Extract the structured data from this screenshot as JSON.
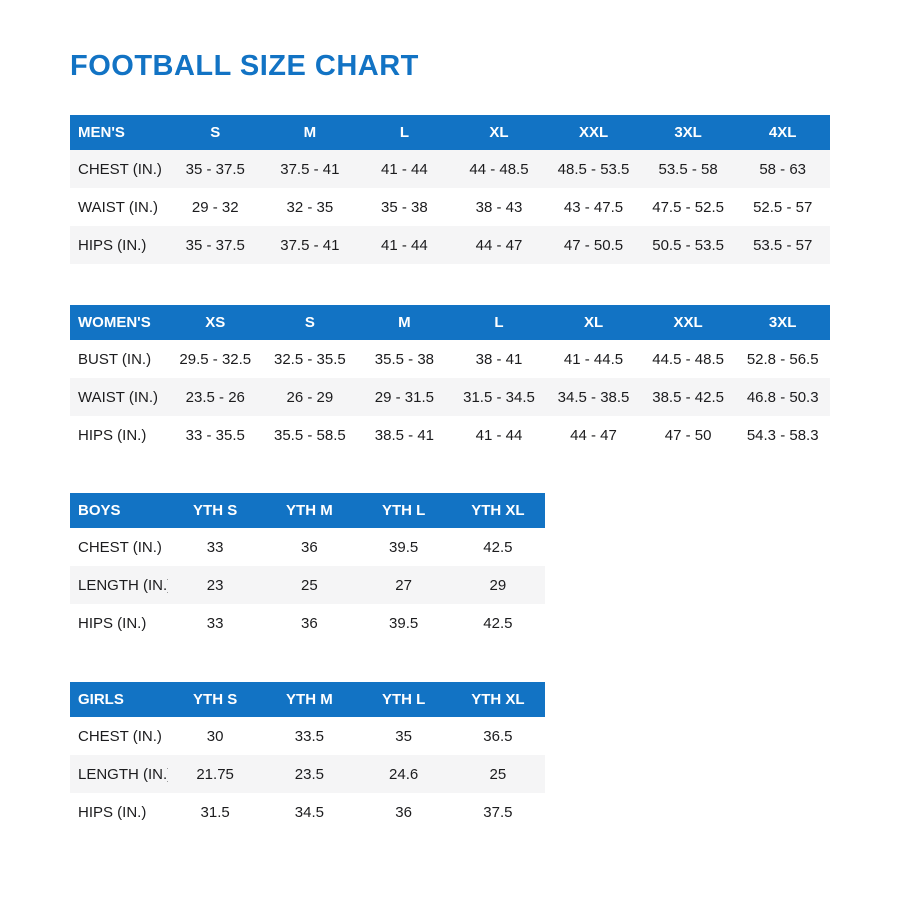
{
  "page": {
    "title": "FOOTBALL SIZE CHART"
  },
  "colors": {
    "accent": "#1273c4",
    "stripe": "#f5f5f6",
    "text": "#1c1c1e",
    "header_text": "#ffffff"
  },
  "tables": [
    {
      "name": "MEN'S",
      "columns": [
        "S",
        "M",
        "L",
        "XL",
        "XXL",
        "3XL",
        "4XL"
      ],
      "rows": [
        {
          "label": "CHEST (IN.)",
          "shaded": true,
          "values": [
            "35 - 37.5",
            "37.5 - 41",
            "41 - 44",
            "44 - 48.5",
            "48.5 - 53.5",
            "53.5 - 58",
            "58 - 63"
          ]
        },
        {
          "label": "WAIST (IN.)",
          "shaded": false,
          "values": [
            "29 - 32",
            "32 - 35",
            "35 - 38",
            "38 - 43",
            "43 - 47.5",
            "47.5 - 52.5",
            "52.5 - 57"
          ]
        },
        {
          "label": "HIPS (IN.)",
          "shaded": true,
          "values": [
            "35 - 37.5",
            "37.5 - 41",
            "41 - 44",
            "44 - 47",
            "47 - 50.5",
            "50.5 - 53.5",
            "53.5 - 57"
          ]
        }
      ]
    },
    {
      "name": "WOMEN'S",
      "columns": [
        "XS",
        "S",
        "M",
        "L",
        "XL",
        "XXL",
        "3XL"
      ],
      "rows": [
        {
          "label": "BUST (IN.)",
          "shaded": false,
          "values": [
            "29.5 - 32.5",
            "32.5 - 35.5",
            "35.5 - 38",
            "38 - 41",
            "41 - 44.5",
            "44.5 - 48.5",
            "52.8 - 56.5"
          ]
        },
        {
          "label": "WAIST (IN.)",
          "shaded": true,
          "values": [
            "23.5 - 26",
            "26 - 29",
            "29 - 31.5",
            "31.5 - 34.5",
            "34.5 - 38.5",
            "38.5 - 42.5",
            "46.8 - 50.3"
          ]
        },
        {
          "label": "HIPS (IN.)",
          "shaded": false,
          "values": [
            "33 - 35.5",
            "35.5 - 58.5",
            "38.5 - 41",
            "41 - 44",
            "44 - 47",
            "47 - 50",
            "54.3 - 58.3"
          ]
        }
      ]
    },
    {
      "name": "BOYS",
      "columns": [
        "YTH S",
        "YTH M",
        "YTH L",
        "YTH XL"
      ],
      "rows": [
        {
          "label": "CHEST (IN.)",
          "shaded": false,
          "values": [
            "33",
            "36",
            "39.5",
            "42.5"
          ]
        },
        {
          "label": "LENGTH (IN.)",
          "shaded": true,
          "values": [
            "23",
            "25",
            "27",
            "29"
          ]
        },
        {
          "label": "HIPS (IN.)",
          "shaded": false,
          "values": [
            "33",
            "36",
            "39.5",
            "42.5"
          ]
        }
      ]
    },
    {
      "name": "GIRLS",
      "columns": [
        "YTH S",
        "YTH M",
        "YTH L",
        "YTH XL"
      ],
      "rows": [
        {
          "label": "CHEST (IN.)",
          "shaded": false,
          "values": [
            "30",
            "33.5",
            "35",
            "36.5"
          ]
        },
        {
          "label": "LENGTH (IN.)",
          "shaded": true,
          "values": [
            "21.75",
            "23.5",
            "24.6",
            "25"
          ]
        },
        {
          "label": "HIPS (IN.)",
          "shaded": false,
          "values": [
            "31.5",
            "34.5",
            "36",
            "37.5"
          ]
        }
      ]
    }
  ]
}
